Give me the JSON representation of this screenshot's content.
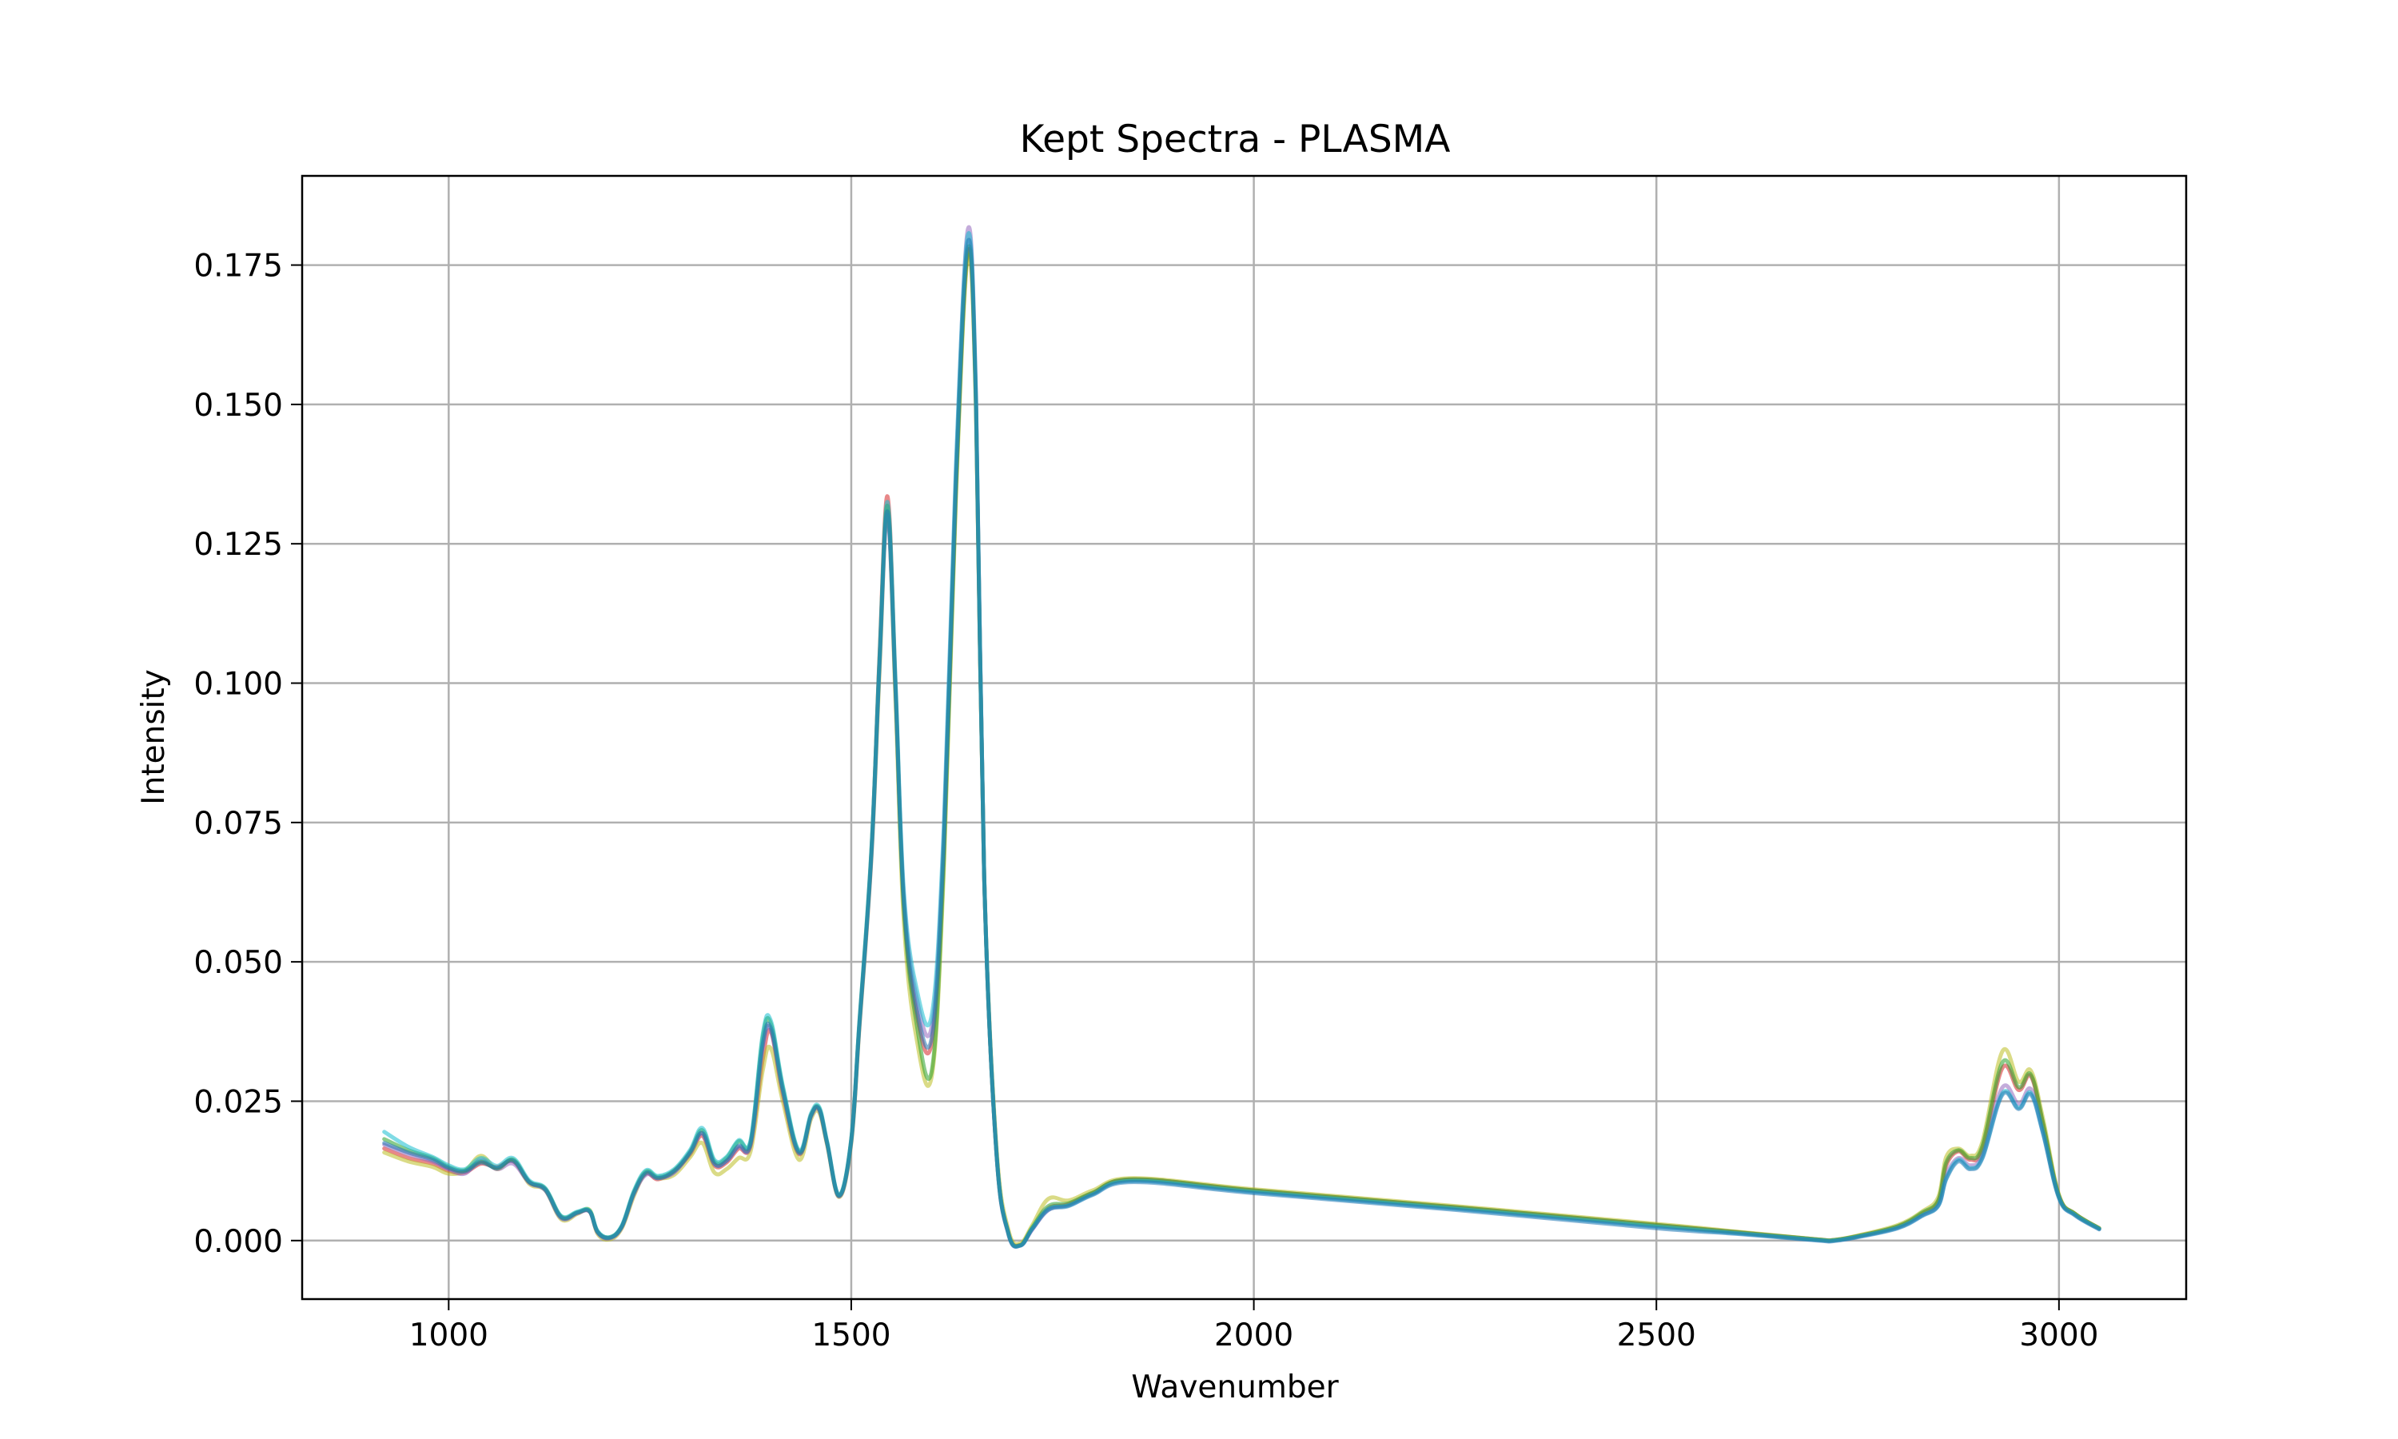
{
  "chart_data": {
    "type": "line",
    "title": "Kept Spectra - PLASMA",
    "xlabel": "Wavenumber",
    "ylabel": "Intensity",
    "xlim": [
      818,
      3158
    ],
    "ylim": [
      -0.0105,
      0.191
    ],
    "xticks": [
      1000,
      1500,
      2000,
      2500,
      3000
    ],
    "xtick_labels": [
      "1000",
      "1500",
      "2000",
      "2500",
      "3000"
    ],
    "yticks": [
      0.0,
      0.025,
      0.05,
      0.075,
      0.1,
      0.125,
      0.15,
      0.175
    ],
    "ytick_labels": [
      "0.000",
      "0.025",
      "0.050",
      "0.075",
      "0.100",
      "0.125",
      "0.150",
      "0.175"
    ],
    "grid": true,
    "legend": "none",
    "x": [
      920,
      950,
      980,
      1000,
      1020,
      1040,
      1060,
      1080,
      1100,
      1120,
      1140,
      1160,
      1175,
      1185,
      1200,
      1215,
      1230,
      1245,
      1260,
      1280,
      1300,
      1315,
      1330,
      1345,
      1360,
      1375,
      1390,
      1400,
      1415,
      1435,
      1450,
      1460,
      1470,
      1485,
      1500,
      1510,
      1525,
      1535,
      1545,
      1555,
      1565,
      1580,
      1600,
      1615,
      1630,
      1645,
      1655,
      1665,
      1680,
      1695,
      1710,
      1725,
      1745,
      1770,
      1800,
      1850,
      2000,
      2250,
      2500,
      2600,
      2700,
      2720,
      2750,
      2800,
      2830,
      2850,
      2860,
      2875,
      2890,
      2905,
      2930,
      2950,
      2965,
      2980,
      3000,
      3020,
      3050
    ],
    "series": [
      {
        "color": "#d62728",
        "values": [
          0.0165,
          0.0148,
          0.0138,
          0.0125,
          0.0122,
          0.0138,
          0.0132,
          0.0142,
          0.0105,
          0.0092,
          0.0042,
          0.005,
          0.0052,
          0.0015,
          0.0005,
          0.0025,
          0.0085,
          0.012,
          0.011,
          0.0125,
          0.0155,
          0.0188,
          0.0135,
          0.014,
          0.0165,
          0.017,
          0.0325,
          0.0375,
          0.0262,
          0.0155,
          0.0225,
          0.0235,
          0.0175,
          0.008,
          0.018,
          0.0385,
          0.0695,
          0.1045,
          0.1335,
          0.0995,
          0.0615,
          0.0415,
          0.0355,
          0.0705,
          0.1355,
          0.1775,
          0.1495,
          0.0655,
          0.0165,
          0.0015,
          -0.0008,
          0.0022,
          0.0058,
          0.0065,
          0.0085,
          0.011,
          0.009,
          0.006,
          0.0028,
          0.0015,
          0.0002,
          0.0001,
          0.0008,
          0.0025,
          0.0048,
          0.007,
          0.0135,
          0.016,
          0.0145,
          0.0165,
          0.031,
          0.027,
          0.0295,
          0.021,
          0.008,
          0.0048,
          0.0022
        ]
      },
      {
        "color": "#bcbd22",
        "values": [
          0.0158,
          0.0142,
          0.0132,
          0.012,
          0.0125,
          0.0152,
          0.0128,
          0.0145,
          0.0102,
          0.009,
          0.0038,
          0.0048,
          0.0055,
          0.0012,
          0.0002,
          0.0022,
          0.008,
          0.0122,
          0.0112,
          0.0118,
          0.015,
          0.0175,
          0.0122,
          0.0128,
          0.0148,
          0.016,
          0.0305,
          0.0345,
          0.025,
          0.0145,
          0.0218,
          0.023,
          0.0172,
          0.0078,
          0.0175,
          0.0378,
          0.0685,
          0.1015,
          0.131,
          0.0965,
          0.058,
          0.0372,
          0.0295,
          0.0665,
          0.133,
          0.1765,
          0.148,
          0.066,
          0.0175,
          0.002,
          -0.0005,
          0.0028,
          0.0075,
          0.0072,
          0.009,
          0.0112,
          0.0092,
          0.0062,
          0.003,
          0.0016,
          0.0002,
          0.0001,
          0.0009,
          0.0028,
          0.0052,
          0.0078,
          0.015,
          0.0165,
          0.0152,
          0.0178,
          0.034,
          0.0285,
          0.0305,
          0.022,
          0.0082,
          0.0048,
          0.0022
        ]
      },
      {
        "color": "#9467bd",
        "values": [
          0.0172,
          0.0155,
          0.0142,
          0.0128,
          0.012,
          0.0145,
          0.0128,
          0.0138,
          0.0104,
          0.009,
          0.004,
          0.0049,
          0.0052,
          0.0014,
          0.0004,
          0.0024,
          0.0083,
          0.0118,
          0.0112,
          0.0122,
          0.0158,
          0.0192,
          0.0138,
          0.0143,
          0.0168,
          0.0172,
          0.0348,
          0.0378,
          0.0268,
          0.0158,
          0.0222,
          0.0234,
          0.0174,
          0.0079,
          0.0178,
          0.0382,
          0.0688,
          0.1028,
          0.1302,
          0.0985,
          0.0625,
          0.0445,
          0.0385,
          0.073,
          0.138,
          0.1815,
          0.1512,
          0.0658,
          0.0162,
          0.0012,
          -0.0009,
          0.002,
          0.0055,
          0.0064,
          0.0084,
          0.0108,
          0.0088,
          0.0058,
          0.0026,
          0.0014,
          0.0001,
          0.0,
          0.0007,
          0.0024,
          0.0046,
          0.0065,
          0.0118,
          0.0148,
          0.0135,
          0.0155,
          0.0275,
          0.0245,
          0.0272,
          0.0198,
          0.0078,
          0.0046,
          0.0021
        ]
      },
      {
        "color": "#2ca02c",
        "values": [
          0.0182,
          0.0162,
          0.0148,
          0.0132,
          0.0126,
          0.0142,
          0.013,
          0.0145,
          0.0106,
          0.0093,
          0.0043,
          0.0051,
          0.0053,
          0.0016,
          0.0006,
          0.0026,
          0.0087,
          0.0124,
          0.0114,
          0.0126,
          0.016,
          0.0198,
          0.0142,
          0.0148,
          0.0178,
          0.0178,
          0.0365,
          0.039,
          0.0275,
          0.016,
          0.0225,
          0.0238,
          0.0176,
          0.0081,
          0.0182,
          0.0388,
          0.0698,
          0.104,
          0.1318,
          0.099,
          0.0605,
          0.04,
          0.0305,
          0.0685,
          0.1345,
          0.178,
          0.1492,
          0.0654,
          0.0164,
          0.0014,
          -0.0008,
          0.0024,
          0.0062,
          0.0067,
          0.0086,
          0.011,
          0.009,
          0.006,
          0.0028,
          0.0015,
          0.0002,
          0.0001,
          0.0008,
          0.0026,
          0.005,
          0.0072,
          0.014,
          0.0162,
          0.0148,
          0.017,
          0.032,
          0.0275,
          0.0298,
          0.0212,
          0.008,
          0.0048,
          0.0022
        ]
      },
      {
        "color": "#17becf",
        "values": [
          0.0195,
          0.0168,
          0.015,
          0.0135,
          0.0128,
          0.0148,
          0.0134,
          0.0148,
          0.0108,
          0.0094,
          0.0044,
          0.0052,
          0.0054,
          0.0017,
          0.0006,
          0.0027,
          0.0089,
          0.0126,
          0.0116,
          0.0128,
          0.0163,
          0.0202,
          0.0145,
          0.015,
          0.018,
          0.018,
          0.037,
          0.0395,
          0.0278,
          0.0162,
          0.0228,
          0.024,
          0.0178,
          0.0082,
          0.0183,
          0.039,
          0.07,
          0.1038,
          0.1325,
          0.1002,
          0.0635,
          0.046,
          0.0405,
          0.0745,
          0.139,
          0.1805,
          0.1505,
          0.0658,
          0.0165,
          0.0014,
          -0.0009,
          0.0022,
          0.0057,
          0.0063,
          0.0083,
          0.0107,
          0.0087,
          0.0057,
          0.0025,
          0.0013,
          0.0001,
          0.0,
          0.0007,
          0.0023,
          0.0045,
          0.0063,
          0.0112,
          0.0145,
          0.013,
          0.015,
          0.0265,
          0.0238,
          0.0265,
          0.0195,
          0.0077,
          0.0046,
          0.0021
        ]
      },
      {
        "color": "#1f77b4",
        "values": [
          0.0175,
          0.0158,
          0.0145,
          0.013,
          0.0124,
          0.014,
          0.013,
          0.0143,
          0.0105,
          0.0091,
          0.0041,
          0.005,
          0.0052,
          0.0015,
          0.0005,
          0.0025,
          0.0085,
          0.0121,
          0.0112,
          0.0124,
          0.0158,
          0.0193,
          0.0138,
          0.0143,
          0.017,
          0.0174,
          0.0352,
          0.0382,
          0.027,
          0.0157,
          0.0224,
          0.0236,
          0.0175,
          0.008,
          0.018,
          0.0384,
          0.0692,
          0.1032,
          0.1308,
          0.0985,
          0.0615,
          0.0425,
          0.0365,
          0.0712,
          0.1362,
          0.1792,
          0.1498,
          0.0656,
          0.0164,
          0.0013,
          -0.0009,
          0.0021,
          0.0055,
          0.0062,
          0.0082,
          0.0105,
          0.0085,
          0.0055,
          0.0022,
          0.0012,
          0.0,
          -0.0001,
          0.0006,
          0.0022,
          0.0044,
          0.0062,
          0.011,
          0.0142,
          0.0128,
          0.0148,
          0.0262,
          0.0236,
          0.0262,
          0.0193,
          0.0076,
          0.0045,
          0.002
        ]
      }
    ]
  }
}
